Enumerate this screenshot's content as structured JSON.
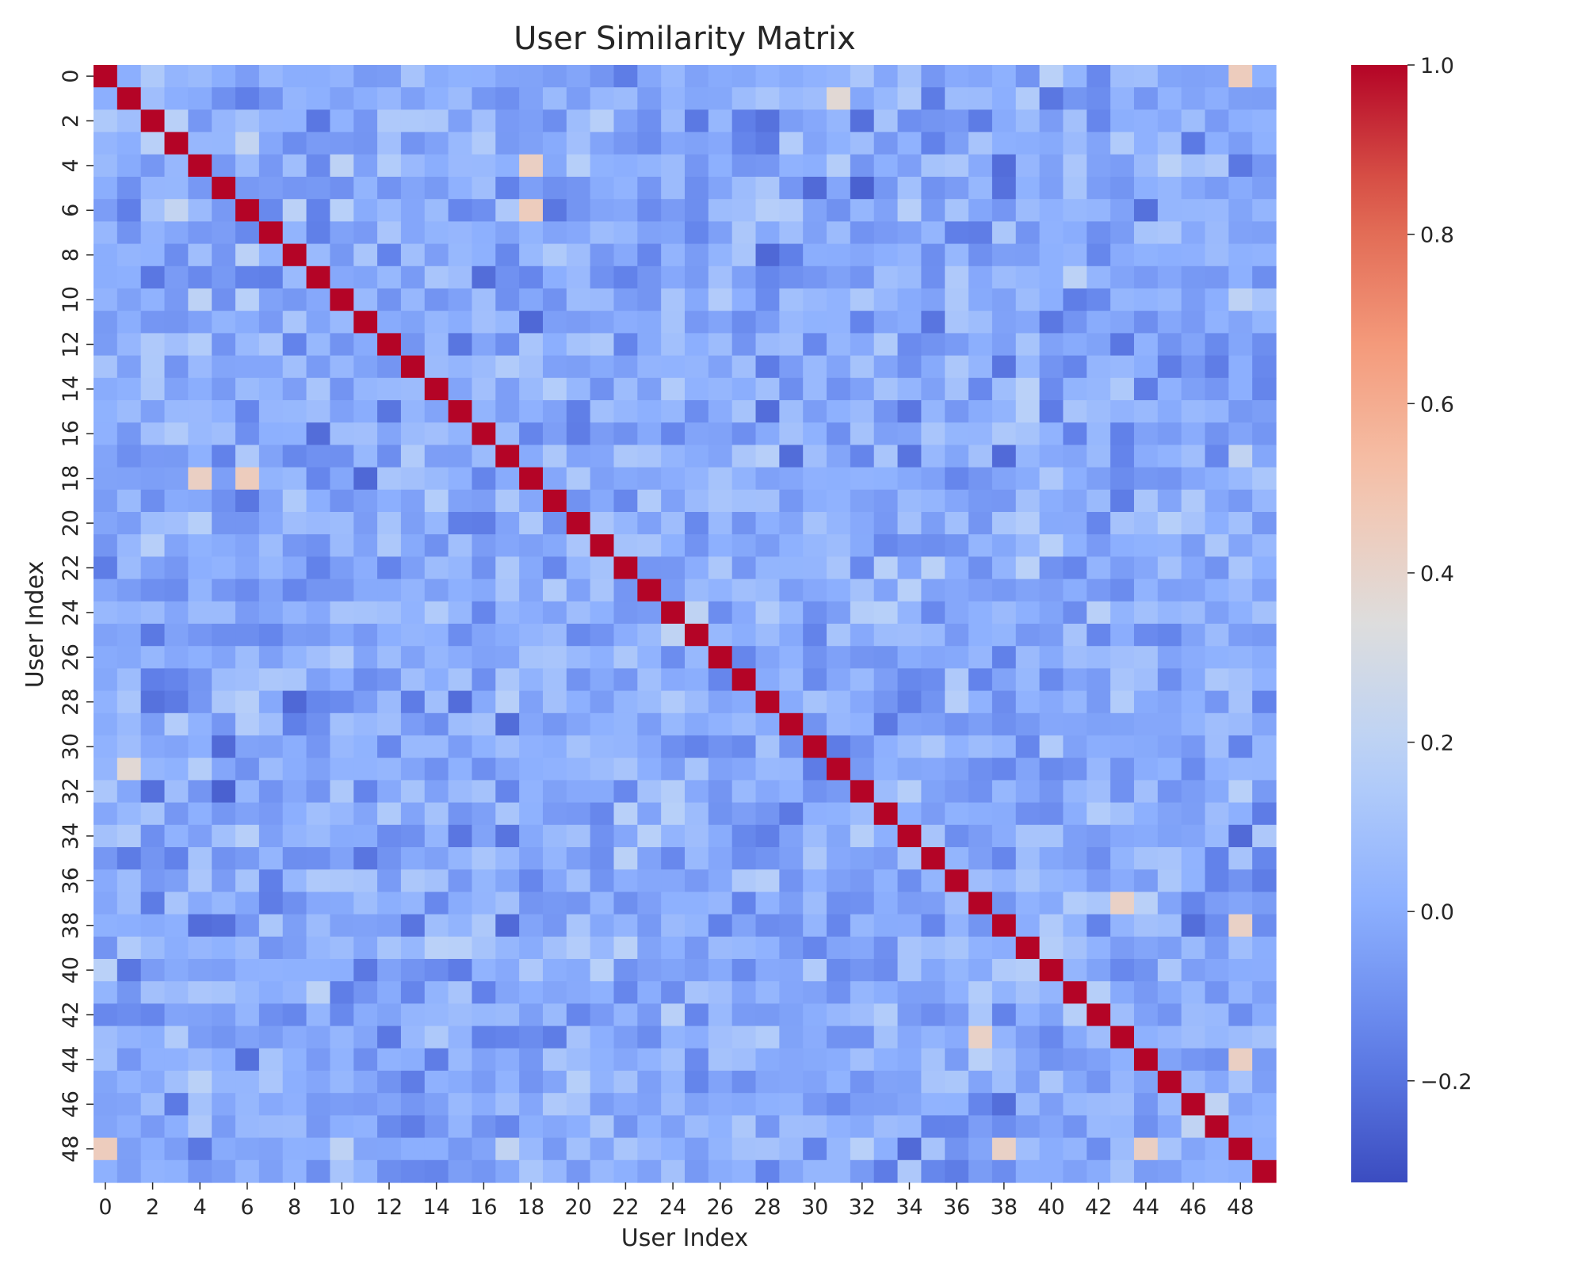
{
  "chart_data": {
    "type": "heatmap",
    "title": "User Similarity Matrix",
    "xlabel": "User Index",
    "ylabel": "User Index",
    "n": 50,
    "x_tick_labels": [
      "0",
      "2",
      "4",
      "6",
      "8",
      "10",
      "12",
      "14",
      "16",
      "18",
      "20",
      "22",
      "24",
      "26",
      "28",
      "30",
      "32",
      "34",
      "36",
      "38",
      "40",
      "42",
      "44",
      "46",
      "48"
    ],
    "y_tick_labels": [
      "0",
      "2",
      "4",
      "6",
      "8",
      "10",
      "12",
      "14",
      "16",
      "18",
      "20",
      "22",
      "24",
      "26",
      "28",
      "30",
      "32",
      "34",
      "36",
      "38",
      "40",
      "42",
      "44",
      "46",
      "48"
    ],
    "colorbar": {
      "colormap": "coolwarm",
      "vmin": -0.32,
      "vmax": 1.0,
      "tick_labels": [
        "−0.2",
        "0.0",
        "0.2",
        "0.4",
        "0.6",
        "0.8",
        "1.0"
      ],
      "tick_values": [
        -0.2,
        0.0,
        0.2,
        0.4,
        0.6,
        0.8,
        1.0
      ]
    },
    "diagonal_value": 1.0,
    "off_diagonal_typical_range": [
      -0.3,
      0.45
    ],
    "notable_cells": [
      {
        "row": 0,
        "col": 48,
        "value": 0.45
      },
      {
        "row": 48,
        "col": 0,
        "value": 0.45
      },
      {
        "row": 18,
        "col": 4,
        "value": 0.43
      },
      {
        "row": 4,
        "col": 18,
        "value": 0.43
      },
      {
        "row": 18,
        "col": 6,
        "value": 0.45
      },
      {
        "row": 6,
        "col": 18,
        "value": 0.45
      },
      {
        "row": 37,
        "col": 43,
        "value": 0.42
      },
      {
        "row": 43,
        "col": 37,
        "value": 0.42
      },
      {
        "row": 44,
        "col": 48,
        "value": 0.43
      },
      {
        "row": 48,
        "col": 44,
        "value": 0.43
      },
      {
        "row": 38,
        "col": 48,
        "value": 0.42
      },
      {
        "row": 48,
        "col": 38,
        "value": 0.42
      },
      {
        "row": 1,
        "col": 31,
        "value": 0.37
      },
      {
        "row": 31,
        "col": 1,
        "value": 0.37
      }
    ]
  }
}
